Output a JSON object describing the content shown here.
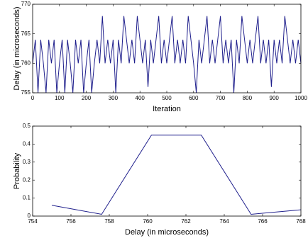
{
  "chart_data": [
    {
      "type": "line",
      "xlabel": "Iteration",
      "ylabel": "Delay (in microseconds)",
      "color": "#1f1f8c",
      "x": [
        0,
        10,
        20,
        30,
        40,
        50,
        60,
        70,
        80,
        90,
        100,
        110,
        120,
        130,
        140,
        150,
        160,
        170,
        180,
        190,
        200,
        210,
        220,
        230,
        240,
        250,
        260,
        270,
        280,
        290,
        300,
        310,
        320,
        330,
        340,
        350,
        360,
        370,
        380,
        390,
        400,
        410,
        420,
        430,
        440,
        450,
        460,
        470,
        480,
        490,
        500,
        510,
        520,
        530,
        540,
        550,
        560,
        570,
        580,
        590,
        600,
        610,
        620,
        630,
        640,
        650,
        660,
        670,
        680,
        690,
        700,
        710,
        720,
        730,
        740,
        750,
        760,
        770,
        780,
        790,
        800,
        810,
        820,
        830,
        840,
        850,
        860,
        870,
        880,
        890,
        900,
        910,
        920,
        930,
        940,
        950,
        960,
        970,
        980,
        990,
        1000
      ],
      "values": [
        760,
        764,
        755,
        764,
        760,
        755,
        764,
        760,
        764,
        755,
        760,
        764,
        755,
        764,
        760,
        755,
        764,
        760,
        764,
        755,
        760,
        764,
        755,
        760,
        764,
        760,
        768,
        760,
        764,
        760,
        764,
        755,
        764,
        760,
        768,
        764,
        760,
        764,
        760,
        768,
        764,
        760,
        764,
        756,
        764,
        760,
        764,
        768,
        760,
        764,
        760,
        764,
        768,
        760,
        764,
        760,
        764,
        760,
        768,
        764,
        760,
        755,
        764,
        760,
        764,
        768,
        760,
        764,
        760,
        764,
        768,
        760,
        764,
        760,
        764,
        755,
        764,
        760,
        768,
        764,
        760,
        764,
        760,
        764,
        768,
        760,
        764,
        760,
        764,
        756,
        764,
        760,
        764,
        760,
        768,
        764,
        760,
        764,
        760,
        764,
        760
      ],
      "xlim": [
        0,
        1000
      ],
      "xticks": [
        0,
        100,
        200,
        300,
        400,
        500,
        600,
        700,
        800,
        900,
        1000
      ],
      "ylim": [
        755,
        770
      ],
      "yticks": [
        755,
        760,
        765,
        770
      ]
    },
    {
      "type": "line",
      "xlabel": "Delay (in microseconds)",
      "ylabel": "Probability",
      "color": "#1f1f8c",
      "x": [
        755,
        757.6,
        760.2,
        762.8,
        765.4,
        768
      ],
      "values": [
        0.06,
        0.01,
        0.45,
        0.45,
        0.01,
        0.035
      ],
      "xlim": [
        754,
        768
      ],
      "xticks": [
        754,
        756,
        758,
        760,
        762,
        764,
        766,
        768
      ],
      "ylim": [
        0,
        0.5
      ],
      "yticks": [
        0,
        0.1,
        0.2,
        0.3,
        0.4,
        0.5
      ]
    }
  ]
}
